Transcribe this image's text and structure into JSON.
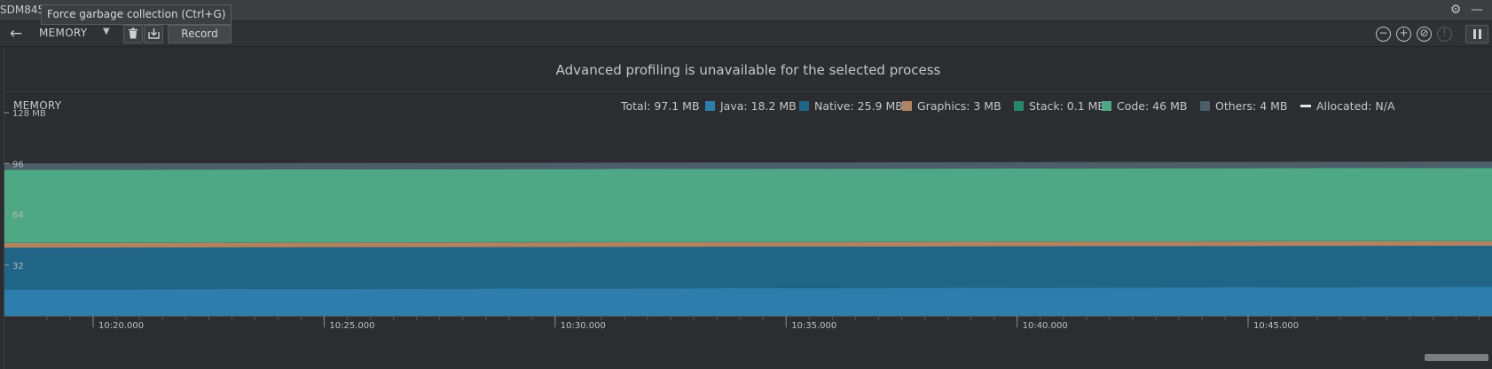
{
  "window": {
    "title": "SDM845",
    "tooltip": "Force garbage collection (Ctrl+G)"
  },
  "toolbar": {
    "profiler_selector": "MEMORY",
    "record_label": "Record"
  },
  "banner": {
    "message": "Advanced profiling is unavailable for the selected process"
  },
  "memory": {
    "label": "MEMORY",
    "legend": [
      {
        "id": "total",
        "label": "Total: 97.1 MB",
        "color": null
      },
      {
        "id": "java",
        "label": "Java: 18.2 MB",
        "color": "#2e7ead"
      },
      {
        "id": "native",
        "label": "Native: 25.9 MB",
        "color": "#206585"
      },
      {
        "id": "graphics",
        "label": "Graphics: 3 MB",
        "color": "#b08462"
      },
      {
        "id": "stack",
        "label": "Stack: 0.1 MB",
        "color": "#27876a"
      },
      {
        "id": "code",
        "label": "Code: 46 MB",
        "color": "#4fa885"
      },
      {
        "id": "others",
        "label": "Others: 4 MB",
        "color": "#4b5e6a"
      },
      {
        "id": "allocated",
        "label": "Allocated: N/A",
        "color": "#e6e6e6"
      }
    ]
  },
  "chart_data": {
    "type": "area",
    "stacked": true,
    "y_unit": "MB",
    "ylim": [
      0,
      128
    ],
    "y_ticks": [
      {
        "value": 128,
        "label": "128 MB"
      },
      {
        "value": 96,
        "label": "96"
      },
      {
        "value": 64,
        "label": "64"
      },
      {
        "value": 32,
        "label": "32"
      }
    ],
    "x_ticks": [
      "10:20.000",
      "10:25.000",
      "10:30.000",
      "10:35.000",
      "10:40.000",
      "10:45.000"
    ],
    "series": [
      {
        "name": "Java",
        "color": "#2e7ead",
        "values": [
          16.5,
          18.2
        ]
      },
      {
        "name": "Native",
        "color": "#206585",
        "values": [
          26.4,
          25.9
        ]
      },
      {
        "name": "Graphics",
        "color": "#b08462",
        "values": [
          3.0,
          3.0
        ]
      },
      {
        "name": "Stack",
        "color": "#27876a",
        "values": [
          0.1,
          0.1
        ]
      },
      {
        "name": "Code",
        "color": "#4fa885",
        "values": [
          46.0,
          46.0
        ]
      },
      {
        "name": "Others",
        "color": "#4b5e6a",
        "values": [
          4.0,
          4.0
        ]
      }
    ]
  }
}
